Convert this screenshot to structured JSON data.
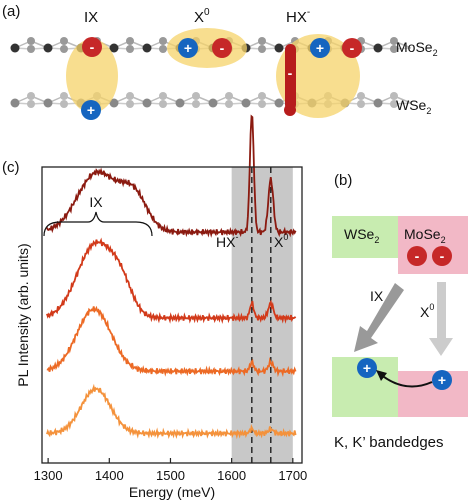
{
  "panel_a": {
    "label": "(a)",
    "exciton_labels": {
      "ix": "IX",
      "x0_base": "X",
      "x0_sup": "0",
      "hx_base": "HX",
      "hx_sup": "-"
    },
    "layer_top": {
      "base": "MoSe",
      "sub": "2"
    },
    "layer_bottom": {
      "base": "WSe",
      "sub": "2"
    },
    "plus_sign": "+",
    "minus_sign": "-"
  },
  "panel_b": {
    "label": "(b)",
    "wse2": {
      "base": "WSe",
      "sub": "2"
    },
    "mose2": {
      "base": "MoSe",
      "sub": "2"
    },
    "ix_label": "IX",
    "x0": {
      "base": "X",
      "sup": "0"
    },
    "caption": "K, K’ bandedges",
    "plus_sign": "+",
    "minus_sign": "-"
  },
  "panel_c": {
    "label": "(c)",
    "ix_bracket_label": "IX",
    "hx_label": {
      "base": "HX",
      "sup": "-"
    },
    "x0_label": {
      "base": "X",
      "sup": "0"
    }
  },
  "colors": {
    "electron": "#c62828",
    "hole": "#1565c0",
    "exciton_glow": "#f5d36a",
    "band_green": "#c8ecb0",
    "band_pink": "#f2b8c6",
    "shade": "#c8c8c8"
  },
  "chart_data": {
    "type": "line",
    "xlabel": "Energy (meV)",
    "ylabel": "PL Intensity (arb. units)",
    "xlim": [
      1290,
      1715
    ],
    "x_ticks": [
      "1300",
      "1400",
      "1500",
      "1600",
      "1700"
    ],
    "x_tick_values": [
      1300,
      1400,
      1500,
      1600,
      1700
    ],
    "shaded_region": [
      1600,
      1700
    ],
    "dashed_lines": [
      1633,
      1664
    ],
    "series": [
      {
        "color": "#8b1a10",
        "baseline": 0.78,
        "ix": [
          [
            1380,
            0.2,
            32
          ],
          [
            1440,
            0.12,
            22
          ]
        ],
        "hx": 0.4,
        "x0": 0.18
      },
      {
        "color": "#d23a1a",
        "baseline": 0.49,
        "ix": [
          [
            1378,
            0.25,
            30
          ],
          [
            1420,
            0.08,
            18
          ]
        ],
        "hx": 0.05,
        "x0": 0.05
      },
      {
        "color": "#ec6a25",
        "baseline": 0.31,
        "ix": [
          [
            1375,
            0.21,
            28
          ]
        ],
        "hx": 0.03,
        "x0": 0.03
      },
      {
        "color": "#f4923c",
        "baseline": 0.1,
        "ix": [
          [
            1378,
            0.15,
            24
          ]
        ],
        "hx": 0.015,
        "x0": 0.015
      }
    ]
  }
}
